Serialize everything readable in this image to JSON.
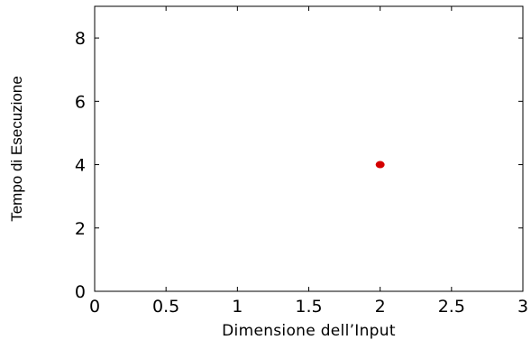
{
  "chart_data": {
    "type": "scatter",
    "title": "",
    "xlabel": "Dimensione dell’Input",
    "ylabel": "Tempo di Esecuzione",
    "xlim": [
      0,
      3
    ],
    "ylim": [
      0,
      9
    ],
    "xticks": [
      0,
      0.5,
      1,
      1.5,
      2,
      2.5,
      3
    ],
    "xtick_labels": [
      "0",
      "0.5",
      "1",
      "1.5",
      "2",
      "2.5",
      "3"
    ],
    "yticks": [
      0,
      2,
      4,
      6,
      8
    ],
    "ytick_labels": [
      "0",
      "2",
      "4",
      "6",
      "8"
    ],
    "grid": false,
    "legend": "none",
    "series": [
      {
        "x": [
          2
        ],
        "y": [
          4
        ],
        "color": "#d40000"
      }
    ]
  }
}
